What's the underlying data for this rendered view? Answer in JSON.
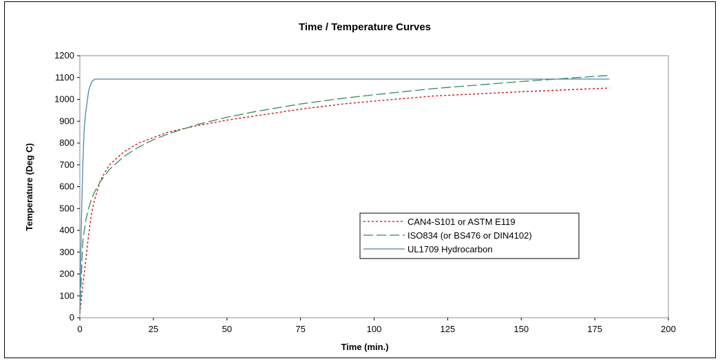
{
  "chart_data": {
    "type": "line",
    "title": "Time / Temperature Curves",
    "xlabel": "Time (min.)",
    "ylabel": "Temperature (Deg C)",
    "xlim": [
      0,
      200
    ],
    "ylim": [
      0,
      1200
    ],
    "x_ticks": [
      "0",
      "25",
      "50",
      "75",
      "100",
      "125",
      "150",
      "175",
      "200"
    ],
    "y_ticks": [
      "0",
      "100",
      "200",
      "300",
      "400",
      "500",
      "600",
      "700",
      "800",
      "900",
      "1000",
      "1100",
      "1200"
    ],
    "grid": false,
    "legend_position": "center-right",
    "series": [
      {
        "name": "CAN4-S101 or ASTM E119",
        "color": "#cc0000",
        "dash": "dotted",
        "x": [
          0,
          1,
          2,
          3,
          4,
          5,
          7,
          10,
          15,
          20,
          25,
          30,
          40,
          50,
          60,
          75,
          90,
          100,
          120,
          150,
          180
        ],
        "y": [
          20,
          150,
          260,
          380,
          480,
          540,
          630,
          700,
          760,
          800,
          825,
          850,
          880,
          905,
          925,
          955,
          980,
          992,
          1015,
          1035,
          1052
        ]
      },
      {
        "name": "ISO834 (or BS476 or DIN4102)",
        "color": "#2e8b57",
        "dash": "long-dash",
        "x": [
          0,
          1,
          2,
          3,
          4,
          5,
          7,
          10,
          15,
          20,
          25,
          30,
          40,
          50,
          60,
          75,
          90,
          100,
          120,
          150,
          180
        ],
        "y": [
          20,
          349,
          445,
          502,
          544,
          576,
          624,
          678,
          739,
          781,
          815,
          842,
          885,
          918,
          945,
          979,
          1006,
          1021,
          1049,
          1082,
          1110
        ]
      },
      {
        "name": "UL1709 Hydrocarbon",
        "color": "#4a86a8",
        "dash": "solid",
        "x": [
          0,
          0.5,
          1,
          1.5,
          2,
          3,
          4,
          5,
          180
        ],
        "y": [
          20,
          420,
          700,
          870,
          940,
          1040,
          1080,
          1093,
          1093
        ]
      }
    ]
  }
}
